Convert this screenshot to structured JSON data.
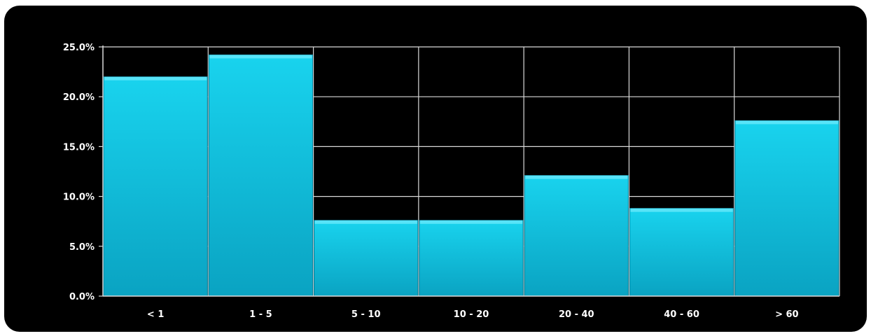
{
  "chart_data": {
    "type": "bar",
    "categories": [
      "< 1",
      "1 - 5",
      "5 - 10",
      "10 - 20",
      "20 - 40",
      "40 - 60",
      "> 60"
    ],
    "values": [
      22.0,
      24.2,
      7.6,
      7.6,
      12.1,
      8.8,
      17.6
    ],
    "y_tick_labels": [
      "0.0%",
      "5.0%",
      "10.0%",
      "15.0%",
      "20.0%",
      "25.0%"
    ],
    "ylim": [
      0,
      25
    ],
    "y_format": "percent",
    "title": "",
    "xlabel": "",
    "ylabel": "",
    "grid": true,
    "legend": "none",
    "colors": {
      "background": "#000000",
      "bar_top": "#19d3ee",
      "bar_bottom": "#0aa3c2",
      "bar_edge": "#5fe6f8",
      "grid": "#d9d9d9",
      "text": "#ffffff"
    }
  }
}
